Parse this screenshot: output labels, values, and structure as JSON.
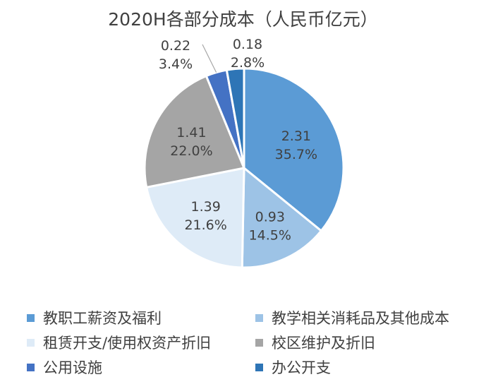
{
  "chart_data": {
    "type": "pie",
    "title": "2020H各部分成本（人民币亿元）",
    "slices": [
      {
        "name": "教职工薪资及福利",
        "value": 2.31,
        "value_label": "2.31",
        "percent_label": "35.7%",
        "color": "#5B9BD5"
      },
      {
        "name": "教学相关消耗品及其他成本",
        "value": 0.93,
        "value_label": "0.93",
        "percent_label": "14.5%",
        "color": "#9DC3E6"
      },
      {
        "name": "租赁开支/使用权资产折旧",
        "value": 1.39,
        "value_label": "1.39",
        "percent_label": "21.6%",
        "color": "#DEEBF7"
      },
      {
        "name": "校区维护及折旧",
        "value": 1.41,
        "value_label": "1.41",
        "percent_label": "22.0%",
        "color": "#A5A5A5"
      },
      {
        "name": "公用设施",
        "value": 0.22,
        "value_label": "0.22",
        "percent_label": "3.4%",
        "color": "#4472C4"
      },
      {
        "name": "办公开支",
        "value": 0.18,
        "value_label": "0.18",
        "percent_label": "2.8%",
        "color": "#2E75B6"
      }
    ],
    "legend_position": "bottom"
  }
}
